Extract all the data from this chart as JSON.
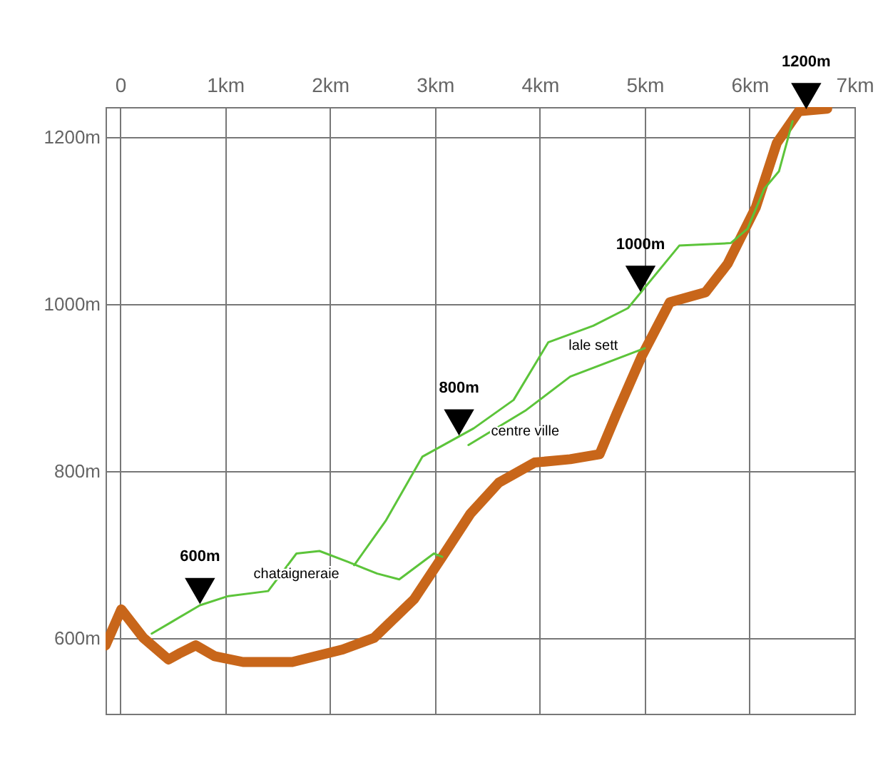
{
  "chart_data": {
    "type": "line",
    "xlim": [
      -0.14,
      7
    ],
    "ylim": [
      509,
      1236
    ],
    "xticks": [
      {
        "value": 0,
        "label": "0"
      },
      {
        "value": 1,
        "label": "1km"
      },
      {
        "value": 2,
        "label": "2km"
      },
      {
        "value": 3,
        "label": "3km"
      },
      {
        "value": 4,
        "label": "4km"
      },
      {
        "value": 5,
        "label": "5km"
      },
      {
        "value": 6,
        "label": "6km"
      },
      {
        "value": 7,
        "label": "7km"
      }
    ],
    "yticks": [
      {
        "value": 600,
        "label": "600m"
      },
      {
        "value": 800,
        "label": "800m"
      },
      {
        "value": 1000,
        "label": "1000m"
      },
      {
        "value": 1200,
        "label": "1200m"
      }
    ],
    "grid": true,
    "marker": "none",
    "line_style": "solid",
    "series": [
      {
        "color": "#c8661a",
        "x": [
          -0.14,
          0.01,
          0.22,
          0.46,
          0.56,
          0.72,
          0.9,
          1.17,
          1.64,
          2.12,
          2.42,
          2.8,
          3.07,
          3.34,
          3.61,
          3.95,
          4.29,
          4.57,
          4.73,
          4.97,
          5.24,
          5.58,
          5.79,
          6.06,
          6.26,
          6.47,
          6.74
        ],
        "values": [
          591,
          634,
          600,
          574,
          581,
          591,
          578,
          571,
          571,
          586,
          600,
          646,
          697,
          749,
          786,
          810,
          814,
          820,
          868,
          937,
          1002,
          1014,
          1048,
          1116,
          1193,
          1231,
          1234
        ]
      },
      {
        "name": "chataigneraie",
        "color": "#5cc43a",
        "x": [
          0.3,
          0.49,
          0.76,
          1.03,
          1.41,
          1.68,
          1.9,
          2.17,
          2.45,
          2.66,
          2.99,
          3.07
        ],
        "values": [
          605,
          619,
          639,
          650,
          656,
          701,
          704,
          691,
          677,
          670,
          701,
          697
        ]
      },
      {
        "name": "lale sett",
        "color": "#5cc43a",
        "x": [
          2.23,
          2.53,
          2.88,
          3.37,
          3.75,
          4.08,
          4.51,
          4.84,
          5.33,
          5.82,
          5.98,
          6.14,
          6.28,
          6.41
        ],
        "values": [
          687,
          740,
          817,
          851,
          885,
          954,
          974,
          995,
          1070,
          1073,
          1090,
          1138,
          1159,
          1219
        ]
      },
      {
        "name": "centre ville",
        "color": "#5cc43a",
        "x": [
          3.32,
          3.86,
          4.29,
          5.0
        ],
        "values": [
          831,
          872,
          913,
          947
        ]
      }
    ],
    "annotations": [
      {
        "text": "600m",
        "x": 0.76,
        "y": 639
      },
      {
        "text": "800m",
        "x": 3.23,
        "y": 841
      },
      {
        "text": "1000m",
        "x": 4.96,
        "y": 1013
      },
      {
        "text": "1200m",
        "x": 6.54,
        "y": 1232
      }
    ]
  }
}
